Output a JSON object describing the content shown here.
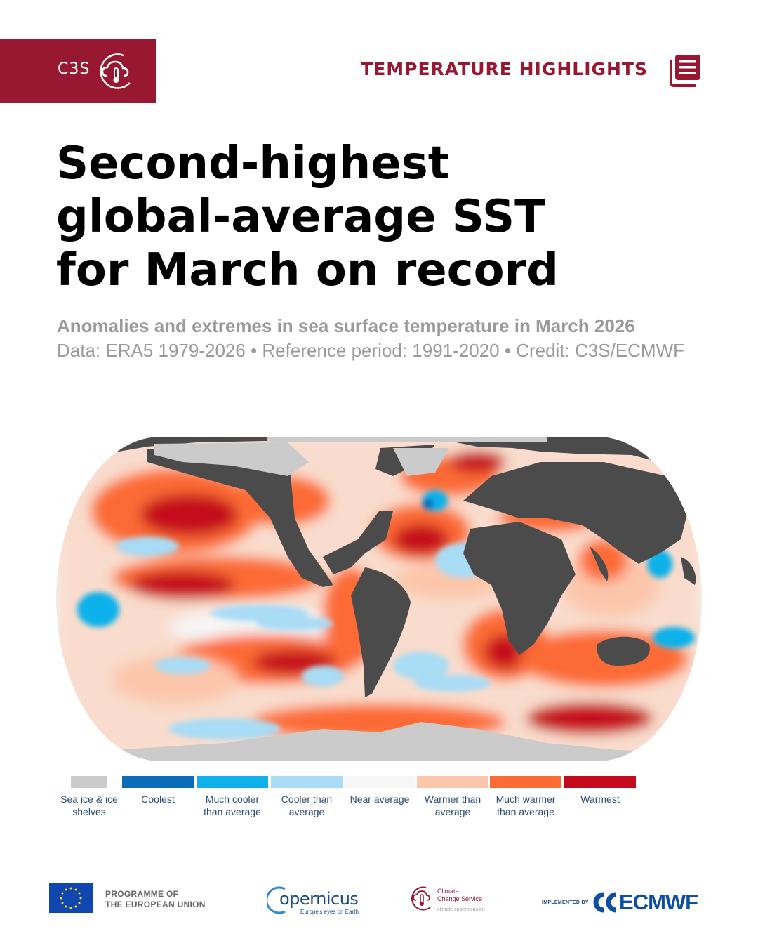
{
  "header": {
    "brand": "C3S",
    "section_label": "TEMPERATURE HIGHLIGHTS",
    "brand_color": "#981832",
    "brand_icon": "cloud-thermometer-icon",
    "section_icon": "document-icon"
  },
  "headline": {
    "lines": [
      "Second-highest",
      "global-average SST",
      "for March on record"
    ]
  },
  "subtitle": "Anomalies and extremes in sea surface temperature in March 2026",
  "source_line": "Data: ERA5 1979-2026 • Reference period: 1991-2020 • Credit: C3S/ECMWF",
  "map": {
    "type": "global sea surface temperature anomaly map",
    "projection": "Robinson",
    "land_color": "#4b4b4b",
    "sea_ice_color": "#cbcbcb"
  },
  "legend": {
    "items": [
      {
        "label": "Sea ice & ice shelves",
        "color": "#cbcbcb"
      },
      {
        "label": "Coolest",
        "color": "#0b6cb8"
      },
      {
        "label": "Much cooler than average",
        "color": "#10b1ea"
      },
      {
        "label": "Cooler than average",
        "color": "#a9dcf5"
      },
      {
        "label": "Near average",
        "color": "#f6f6f6"
      },
      {
        "label": "Warmer than average",
        "color": "#fcc6ab"
      },
      {
        "label": "Much warmer than average",
        "color": "#fc6a35"
      },
      {
        "label": "Warmest",
        "color": "#c40a1f"
      }
    ]
  },
  "footer": {
    "eu_programme": [
      "PROGRAMME OF",
      "THE EUROPEAN UNION"
    ],
    "copernicus": "opernicus",
    "copernicus_tagline": "Europe's eyes on Earth",
    "ccs_name": [
      "Climate",
      "Change Service"
    ],
    "ccs_url": "climate.copernicus.eu",
    "implemented_by": "IMPLEMENTED BY",
    "ecmwf": "ECMWF"
  }
}
